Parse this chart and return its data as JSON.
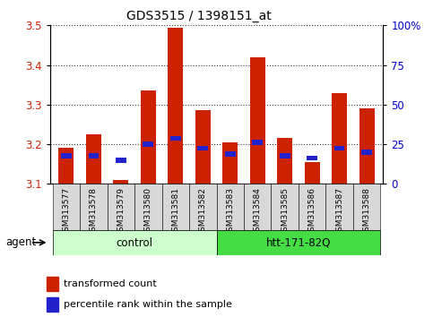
{
  "title": "GDS3515 / 1398151_at",
  "samples": [
    "GSM313577",
    "GSM313578",
    "GSM313579",
    "GSM313580",
    "GSM313581",
    "GSM313582",
    "GSM313583",
    "GSM313584",
    "GSM313585",
    "GSM313586",
    "GSM313587",
    "GSM313588"
  ],
  "red_values": [
    3.19,
    3.225,
    3.11,
    3.335,
    3.495,
    3.285,
    3.205,
    3.42,
    3.215,
    3.155,
    3.33,
    3.29
  ],
  "blue_values": [
    3.17,
    3.17,
    3.16,
    3.2,
    3.215,
    3.19,
    3.175,
    3.205,
    3.17,
    3.165,
    3.19,
    3.18
  ],
  "y_min": 3.1,
  "y_max": 3.5,
  "y_ticks": [
    3.1,
    3.2,
    3.3,
    3.4,
    3.5
  ],
  "right_y_ticks": [
    0,
    25,
    50,
    75,
    100
  ],
  "right_y_labels": [
    "0",
    "25",
    "50",
    "75",
    "100%"
  ],
  "control_label": "control",
  "treatment_label": "htt-171-82Q",
  "agent_label": "agent",
  "bar_width": 0.55,
  "red_color": "#cc2200",
  "blue_color": "#2222cc",
  "control_bg": "#ccffcc",
  "treatment_bg": "#44dd44",
  "tick_bg": "#d8d8d8",
  "axis_label_color_left": "#cc2200",
  "axis_label_color_right": "#0000cc",
  "legend_red_label": "transformed count",
  "legend_blue_label": "percentile rank within the sample"
}
